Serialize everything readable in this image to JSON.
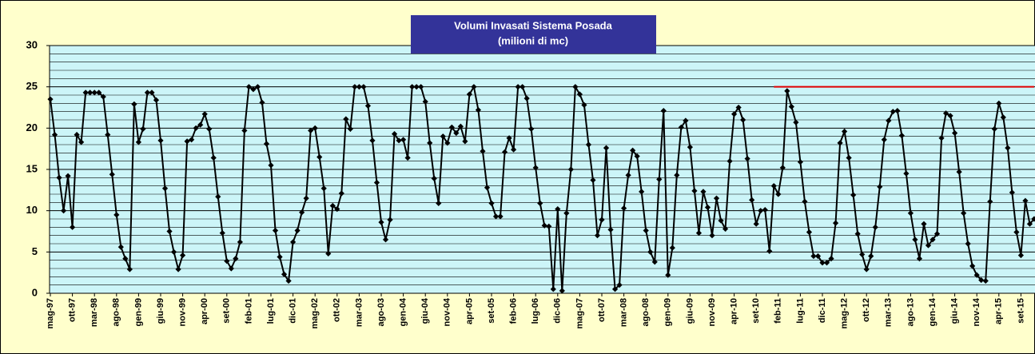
{
  "chart_data": {
    "type": "line",
    "title": "Volumi Invasati Sistema Posada",
    "subtitle": "(milioni di mc)",
    "categories": [
      "mag-97",
      null,
      null,
      null,
      null,
      "ott-97",
      null,
      null,
      null,
      null,
      "mar-98",
      null,
      null,
      null,
      null,
      "ago-98",
      null,
      null,
      null,
      null,
      "gen-99",
      null,
      null,
      null,
      null,
      "giu-99",
      null,
      null,
      null,
      null,
      "nov-99",
      null,
      null,
      null,
      null,
      "apr-00",
      null,
      null,
      null,
      null,
      "set-00",
      null,
      null,
      null,
      null,
      "feb-01",
      null,
      null,
      null,
      null,
      "lug-01",
      null,
      null,
      null,
      null,
      "dic-01",
      null,
      null,
      null,
      null,
      "mag-02",
      null,
      null,
      null,
      null,
      "ott-02",
      null,
      null,
      null,
      null,
      "mar-03",
      null,
      null,
      null,
      null,
      "ago-03",
      null,
      null,
      null,
      null,
      "gen-04",
      null,
      null,
      null,
      null,
      "giu-04",
      null,
      null,
      null,
      null,
      "nov-04",
      null,
      null,
      null,
      null,
      "apr-05",
      null,
      null,
      null,
      null,
      "set-05",
      null,
      null,
      null,
      null,
      "feb-06",
      null,
      null,
      null,
      null,
      "lug-06",
      null,
      null,
      null,
      null,
      "dic-06",
      null,
      null,
      null,
      null,
      "mag-07",
      null,
      null,
      null,
      null,
      "ott-07",
      null,
      null,
      null,
      null,
      "mar-08",
      null,
      null,
      null,
      null,
      "ago-08",
      null,
      null,
      null,
      null,
      "gen-09",
      null,
      null,
      null,
      null,
      "giu-09",
      null,
      null,
      null,
      null,
      "nov-09",
      null,
      null,
      null,
      null,
      "apr-10",
      null,
      null,
      null,
      null,
      "set-10",
      null,
      null,
      null,
      null,
      "feb-11",
      null,
      null,
      null,
      null,
      "lug-11",
      null,
      null,
      null,
      null,
      "dic-11",
      null,
      null,
      null,
      null,
      "mag-12",
      null,
      null,
      null,
      null,
      "ott-12",
      null,
      null,
      null,
      null,
      "mar-13",
      null,
      null,
      null,
      null,
      "ago-13",
      null,
      null,
      null,
      null,
      "gen-14",
      null,
      null,
      null,
      null,
      "giu-14",
      null,
      null,
      null,
      null,
      "nov-14",
      null,
      null,
      null,
      null,
      "apr-15",
      null,
      null,
      null,
      null,
      "set-15",
      null,
      null,
      null
    ],
    "series": [
      {
        "color": "#000000",
        "values": [
          23.5,
          19.2,
          14,
          10,
          14.2,
          8,
          19.2,
          18.3,
          24.3,
          24.3,
          24.3,
          24.3,
          23.8,
          19.2,
          14.4,
          9.5,
          5.6,
          4.2,
          2.9,
          22.9,
          18.3,
          19.9,
          24.3,
          24.3,
          23.4,
          18.5,
          12.7,
          7.5,
          5,
          2.9,
          4.6,
          18.4,
          18.6,
          20,
          20.4,
          21.7,
          19.9,
          16.4,
          11.7,
          7.3,
          3.9,
          3,
          4.2,
          6.2,
          19.7,
          25,
          24.7,
          25,
          23.1,
          18.1,
          15.5,
          7.6,
          4.4,
          2.3,
          1.5,
          6.2,
          7.6,
          9.8,
          11.5,
          19.7,
          20,
          16.5,
          12.7,
          4.8,
          10.6,
          10.2,
          12.1,
          21.1,
          19.9,
          25,
          25,
          25,
          22.7,
          18.5,
          13.4,
          8.6,
          6.5,
          8.9,
          19.3,
          18.5,
          18.6,
          16.4,
          25,
          25,
          25,
          23.2,
          18.2,
          13.9,
          10.9,
          19,
          18.2,
          20.1,
          19.4,
          20.2,
          18.4,
          24.1,
          25,
          22.2,
          17.2,
          12.8,
          10.9,
          9.3,
          9.3,
          17.1,
          18.8,
          17.4,
          25,
          25,
          23.6,
          19.9,
          15.2,
          10.9,
          8.2,
          8.1,
          0.5,
          10.2,
          0.3,
          9.7,
          15,
          25,
          24.1,
          22.8,
          18,
          13.7,
          7,
          8.9,
          17.6,
          7.7,
          0.5,
          1,
          10.3,
          14.3,
          17.3,
          16.6,
          12.3,
          7.6,
          5,
          3.8,
          13.8,
          22.1,
          2.2,
          5.5,
          14.3,
          20.1,
          20.9,
          17.7,
          12.4,
          7.3,
          12.3,
          10.4,
          7,
          11.5,
          8.8,
          7.8,
          16,
          21.7,
          22.5,
          21,
          16.3,
          11.3,
          8.4,
          10,
          10.1,
          5.1,
          13,
          12,
          15.2,
          24.5,
          22.6,
          20.7,
          15.9,
          11.1,
          7.4,
          4.5,
          4.5,
          3.7,
          3.7,
          4.2,
          8.5,
          18.2,
          19.6,
          16.4,
          11.9,
          7.2,
          4.7,
          2.9,
          4.5,
          8,
          12.9,
          18.6,
          20.9,
          22,
          22.1,
          19.1,
          14.5,
          9.7,
          6.5,
          4.2,
          8.4,
          5.8,
          6.5,
          7.2,
          18.8,
          21.8,
          21.5,
          19.4,
          14.7,
          9.7,
          6,
          3.3,
          2.2,
          1.6,
          1.5,
          11.1,
          19.9,
          23,
          21.3,
          17.6,
          12.2,
          7.4,
          4.6,
          11.2,
          8.4,
          9
        ]
      },
      {
        "color": "#e00000",
        "markers": false,
        "values": [
          null,
          null,
          null,
          null,
          null,
          null,
          null,
          null,
          null,
          null,
          null,
          null,
          null,
          null,
          null,
          null,
          null,
          null,
          null,
          null,
          null,
          null,
          null,
          null,
          null,
          null,
          null,
          null,
          null,
          null,
          null,
          null,
          null,
          null,
          null,
          null,
          null,
          null,
          null,
          null,
          null,
          null,
          null,
          null,
          null,
          null,
          null,
          null,
          null,
          null,
          null,
          null,
          null,
          null,
          null,
          null,
          null,
          null,
          null,
          null,
          null,
          null,
          null,
          null,
          null,
          null,
          null,
          null,
          null,
          null,
          null,
          null,
          null,
          null,
          null,
          null,
          null,
          null,
          null,
          null,
          null,
          null,
          null,
          null,
          null,
          null,
          null,
          null,
          null,
          null,
          null,
          null,
          null,
          null,
          null,
          null,
          null,
          null,
          null,
          null,
          null,
          null,
          null,
          null,
          null,
          null,
          null,
          null,
          null,
          null,
          null,
          null,
          null,
          null,
          null,
          null,
          null,
          null,
          null,
          null,
          null,
          null,
          null,
          null,
          null,
          null,
          null,
          null,
          null,
          null,
          null,
          null,
          null,
          null,
          null,
          null,
          null,
          null,
          null,
          null,
          null,
          null,
          null,
          null,
          null,
          null,
          null,
          null,
          null,
          null,
          null,
          null,
          null,
          null,
          null,
          null,
          null,
          null,
          null,
          null,
          null,
          null,
          null,
          null,
          25,
          25,
          25,
          25,
          25,
          25,
          25,
          25,
          25,
          25,
          25,
          25,
          25,
          25,
          25,
          25,
          25,
          25,
          25,
          25,
          25,
          25,
          25,
          25,
          25,
          25,
          25,
          25,
          25,
          25,
          25,
          25,
          25,
          25,
          25,
          25,
          25,
          25,
          25,
          25,
          25,
          25,
          25,
          25,
          25,
          25,
          25,
          25,
          25,
          25,
          25,
          25,
          25,
          25,
          25,
          25,
          25,
          25,
          25,
          25
        ]
      }
    ],
    "ylim": [
      0,
      30
    ],
    "yticks": [
      0,
      5,
      10,
      15,
      20,
      25,
      30
    ],
    "yminorticks": [
      1,
      2,
      3,
      4,
      6,
      7,
      8,
      9,
      11,
      12,
      13,
      14,
      16,
      17,
      18,
      19,
      21,
      22,
      23,
      24,
      26,
      27,
      28,
      29
    ],
    "grid": true
  }
}
